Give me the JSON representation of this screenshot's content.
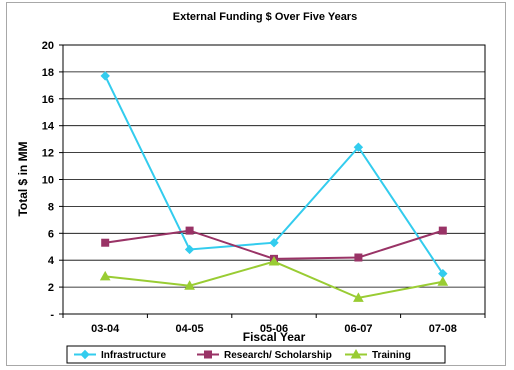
{
  "chart_data": {
    "type": "line",
    "title": "External Funding $ Over Five Years",
    "xlabel": "Fiscal Year",
    "ylabel": "Total $ in MM",
    "categories": [
      "03-04",
      "04-05",
      "05-06",
      "06-07",
      "07-08"
    ],
    "y_ticks": [
      "-",
      "2",
      "4",
      "6",
      "8",
      "10",
      "12",
      "14",
      "16",
      "18",
      "20"
    ],
    "ylim": [
      0,
      20
    ],
    "grid": "horizontal",
    "legend_position": "bottom",
    "series": [
      {
        "name": "Infrastructure",
        "values": [
          17.7,
          4.8,
          5.3,
          12.4,
          3.0
        ],
        "color": "#33CCEE",
        "marker": "diamond"
      },
      {
        "name": "Research/ Scholarship",
        "values": [
          5.3,
          6.2,
          4.1,
          4.2,
          6.2
        ],
        "color": "#993366",
        "marker": "square"
      },
      {
        "name": "Training",
        "values": [
          2.8,
          2.1,
          3.9,
          1.2,
          2.4
        ],
        "color": "#99CC33",
        "marker": "triangle"
      }
    ]
  }
}
